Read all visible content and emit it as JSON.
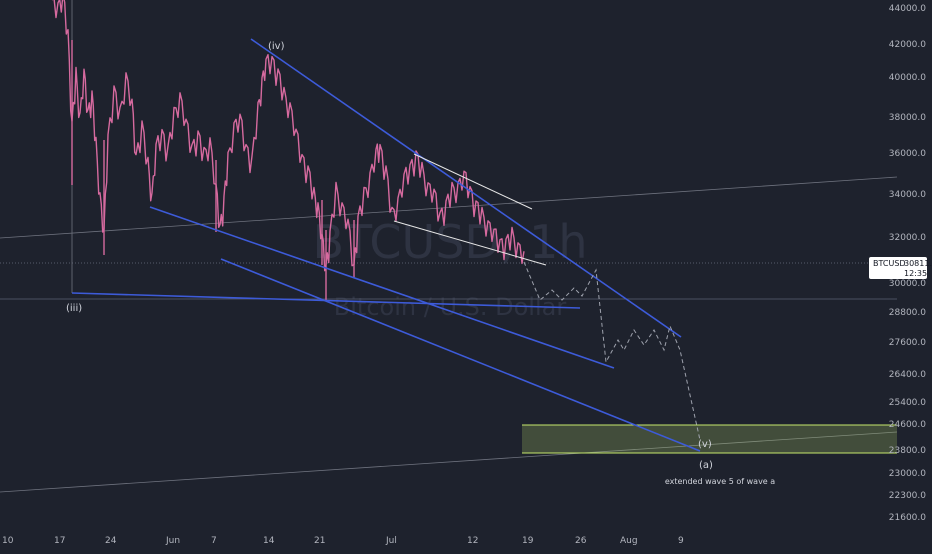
{
  "chart_data": {
    "type": "line",
    "watermark": {
      "symbol": "BTCUSD, 1h",
      "name": "Bitcoin / U.S. Dollar"
    },
    "y_axis": {
      "labels": [
        "44000.0",
        "42000.0",
        "40000.0",
        "38000.0",
        "36000.0",
        "34000.0",
        "32000.0",
        "30000.0",
        "28800.0",
        "27600.0",
        "26400.0",
        "25400.0",
        "24600.0",
        "23800.0",
        "23000.0",
        "22300.0",
        "21600.0"
      ],
      "ylim": [
        21000,
        44500
      ]
    },
    "x_axis": {
      "labels": [
        "10",
        "17",
        "24",
        "Jun",
        "7",
        "14",
        "21",
        "Jul",
        "12",
        "19",
        "26",
        "Aug",
        "9"
      ]
    },
    "last_price": {
      "symbol": "BTCUSD",
      "value": "30811.0",
      "countdown": "12:35",
      "color": "#ffffff"
    },
    "wave_labels": {
      "iii": "(iii)",
      "iv": "(iv)",
      "v": "(v)",
      "a": "(a)",
      "note": "extended wave 5 of wave a"
    },
    "target_zone": {
      "top": 24600,
      "bottom": 23600,
      "color": "#c5e86c"
    },
    "colors": {
      "background": "#1e222d",
      "candles": "#d66a9f",
      "trendlines": "#3d5bd9",
      "channel": "#e6e6e6",
      "projection": "#9ea2ad"
    }
  }
}
